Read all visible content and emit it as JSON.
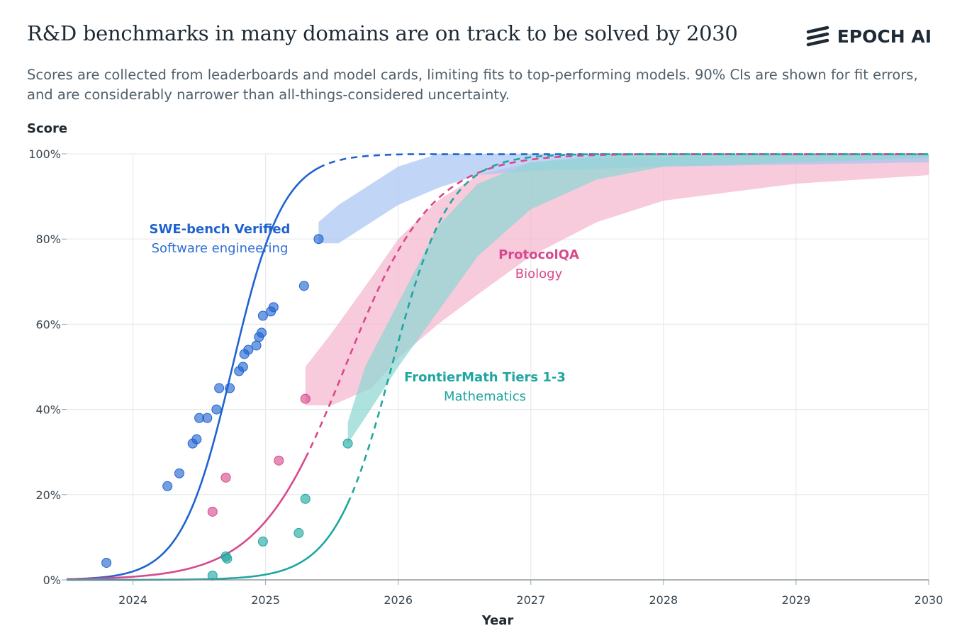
{
  "header": {
    "title": "R&D benchmarks in many domains are on track to be solved by 2030",
    "brand": "EPOCH AI",
    "subtitle": "Scores are collected from leaderboards and model cards, limiting fits to top-performing models. 90% CIs are shown for fit errors, and are considerably narrower than all-things-considered uncertainty."
  },
  "chart_data": {
    "type": "line",
    "ylabel": "Score",
    "xlabel": "Year",
    "xlim": [
      2023.5,
      2030
    ],
    "ylim": [
      0,
      100
    ],
    "x_ticks": [
      "2024",
      "2025",
      "2026",
      "2027",
      "2028",
      "2029",
      "2030"
    ],
    "y_ticks": [
      "0%",
      "20%",
      "40%",
      "60%",
      "80%",
      "100%"
    ],
    "grid": true,
    "series": [
      {
        "name": "SWE-bench Verified",
        "domain": "Software engineering",
        "color": "#1f63d1",
        "fill": "#a9c5f3",
        "fit": {
          "type": "logistic",
          "midpoint": 2024.75,
          "rate": 2.6,
          "solid_until": 2025.4
        },
        "ci_band": [
          {
            "x": 2025.4,
            "lo": 79,
            "hi": 84
          },
          {
            "x": 2025.55,
            "lo": 79,
            "hi": 88
          },
          {
            "x": 2025.8,
            "lo": 84,
            "hi": 93
          },
          {
            "x": 2026.0,
            "lo": 88,
            "hi": 97
          },
          {
            "x": 2026.3,
            "lo": 92,
            "hi": 100
          },
          {
            "x": 2026.6,
            "lo": 95,
            "hi": 100
          },
          {
            "x": 2027.0,
            "lo": 96,
            "hi": 100
          },
          {
            "x": 2028.0,
            "lo": 97,
            "hi": 100
          },
          {
            "x": 2030.0,
            "lo": 98,
            "hi": 100
          }
        ],
        "points": [
          [
            2023.8,
            4
          ],
          [
            2024.26,
            22
          ],
          [
            2024.35,
            25
          ],
          [
            2024.45,
            32
          ],
          [
            2024.48,
            33
          ],
          [
            2024.5,
            38
          ],
          [
            2024.56,
            38
          ],
          [
            2024.63,
            40
          ],
          [
            2024.65,
            45
          ],
          [
            2024.73,
            45
          ],
          [
            2024.8,
            49
          ],
          [
            2024.83,
            50
          ],
          [
            2024.84,
            53
          ],
          [
            2024.87,
            54
          ],
          [
            2024.93,
            55
          ],
          [
            2024.95,
            57
          ],
          [
            2024.97,
            58
          ],
          [
            2024.98,
            62
          ],
          [
            2025.04,
            63
          ],
          [
            2025.06,
            64
          ],
          [
            2025.29,
            69
          ],
          [
            2025.4,
            80
          ]
        ]
      },
      {
        "name": "ProtocolQA",
        "domain": "Biology",
        "color": "#d8498c",
        "fill": "#f4b6cf",
        "fit": {
          "type": "logistic",
          "midpoint": 2025.6,
          "rate": 1.53,
          "solid_until": 2025.3
        },
        "ci_band": [
          {
            "x": 2025.3,
            "lo": 41,
            "hi": 50
          },
          {
            "x": 2025.5,
            "lo": 41,
            "hi": 58
          },
          {
            "x": 2025.8,
            "lo": 45,
            "hi": 71
          },
          {
            "x": 2026.0,
            "lo": 52,
            "hi": 80
          },
          {
            "x": 2026.3,
            "lo": 60,
            "hi": 89
          },
          {
            "x": 2026.6,
            "lo": 67,
            "hi": 95
          },
          {
            "x": 2027.0,
            "lo": 76,
            "hi": 98
          },
          {
            "x": 2027.5,
            "lo": 84,
            "hi": 99
          },
          {
            "x": 2028.0,
            "lo": 89,
            "hi": 99
          },
          {
            "x": 2029.0,
            "lo": 93,
            "hi": 100
          },
          {
            "x": 2030.0,
            "lo": 95,
            "hi": 100
          }
        ],
        "points": [
          [
            2024.6,
            16
          ],
          [
            2024.7,
            24
          ],
          [
            2025.1,
            28
          ],
          [
            2025.3,
            42.5
          ]
        ]
      },
      {
        "name": "FrontierMath Tiers 1-3",
        "domain": "Mathematics",
        "color": "#1fa6a0",
        "fill": "#8fd7d2",
        "fit": {
          "type": "logistic",
          "midpoint": 2025.95,
          "rate": 2.3,
          "solid_until": 2025.62
        },
        "ci_band": [
          {
            "x": 2025.62,
            "lo": 32,
            "hi": 37
          },
          {
            "x": 2025.75,
            "lo": 38,
            "hi": 50
          },
          {
            "x": 2026.0,
            "lo": 50,
            "hi": 65
          },
          {
            "x": 2026.3,
            "lo": 63,
            "hi": 83
          },
          {
            "x": 2026.6,
            "lo": 76,
            "hi": 93
          },
          {
            "x": 2027.0,
            "lo": 87,
            "hi": 98
          },
          {
            "x": 2027.5,
            "lo": 94,
            "hi": 99.5
          },
          {
            "x": 2028.0,
            "lo": 97,
            "hi": 100
          },
          {
            "x": 2030.0,
            "lo": 99,
            "hi": 100
          }
        ],
        "points": [
          [
            2024.6,
            1
          ],
          [
            2024.7,
            5.5
          ],
          [
            2024.71,
            5
          ],
          [
            2024.98,
            9
          ],
          [
            2025.25,
            11
          ],
          [
            2025.3,
            19
          ],
          [
            2025.62,
            32
          ]
        ]
      }
    ]
  }
}
